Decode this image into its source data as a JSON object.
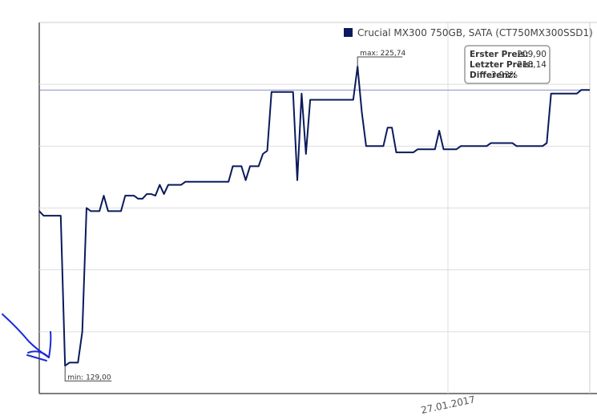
{
  "chart_data": {
    "type": "line",
    "title": "",
    "xlabel": "",
    "ylabel": "",
    "x_tick_labels": [
      "27.01.2017"
    ],
    "legend": {
      "placement": "top-right",
      "entries": [
        "Crucial MX300 750GB, SATA (CT750MX300SSD1)"
      ]
    },
    "grid": true,
    "ylim": [
      120,
      240
    ],
    "reference_line": 218.14,
    "series": [
      {
        "name": "Crucial MX300 750GB, SATA (CT750MX300SSD1)",
        "color": "#0a1a5c",
        "x": [
          0,
          2,
          4,
          6,
          8,
          10,
          12,
          14,
          16,
          18,
          20,
          22,
          24,
          26,
          28,
          30,
          32,
          34,
          36,
          38,
          40,
          42,
          44,
          46,
          48,
          50,
          52,
          54,
          56,
          58,
          60,
          62,
          64,
          66,
          68,
          70,
          72,
          74,
          76,
          78,
          80,
          82,
          84,
          86,
          88,
          90,
          92,
          94,
          96,
          98,
          100,
          102,
          104,
          106,
          108,
          110,
          112,
          114,
          116,
          118,
          120,
          122,
          124,
          126,
          128,
          130,
          132,
          134,
          136,
          138,
          140,
          142,
          144,
          146,
          148,
          150,
          152,
          154,
          156,
          158,
          160,
          162,
          164,
          166,
          168,
          170,
          172,
          174,
          176,
          178,
          180,
          182,
          184,
          186,
          188,
          190,
          192,
          194,
          196,
          198,
          200,
          202,
          204,
          206,
          208,
          210,
          212,
          214,
          216,
          218,
          220,
          222,
          224,
          226,
          228,
          230,
          232,
          234,
          236,
          238,
          240,
          242,
          244,
          246,
          248,
          250,
          252,
          254,
          256
        ],
        "values": [
          179.0,
          177.5,
          177.5,
          177.5,
          177.5,
          177.5,
          129.0,
          130.0,
          130.0,
          130.0,
          140.0,
          180.0,
          179.0,
          179.0,
          179.0,
          184.0,
          179.0,
          179.0,
          179.0,
          179.0,
          184.0,
          184.0,
          184.0,
          183.0,
          183.0,
          184.5,
          184.5,
          184.0,
          187.5,
          184.5,
          187.5,
          187.5,
          187.5,
          187.5,
          188.5,
          188.5,
          188.5,
          188.5,
          188.5,
          188.5,
          188.5,
          188.5,
          188.5,
          188.5,
          188.5,
          193.5,
          193.5,
          193.5,
          189.0,
          193.5,
          193.5,
          193.5,
          197.5,
          198.5,
          217.5,
          217.5,
          217.5,
          217.5,
          217.5,
          217.5,
          189.0,
          217.0,
          197.5,
          215.0,
          215.0,
          215.0,
          215.0,
          215.0,
          215.0,
          215.0,
          215.0,
          215.0,
          215.0,
          215.0,
          225.74,
          211.0,
          200.0,
          200.0,
          200.0,
          200.0,
          200.0,
          206.0,
          206.0,
          198.0,
          198.0,
          198.0,
          198.0,
          198.0,
          199.0,
          199.0,
          199.0,
          199.0,
          199.0,
          205.0,
          199.0,
          199.0,
          199.0,
          199.0,
          200.0,
          200.0,
          200.0,
          200.0,
          200.0,
          200.0,
          200.0,
          201.0,
          201.0,
          201.0,
          201.0,
          201.0,
          201.0,
          200.0,
          200.0,
          200.0,
          200.0,
          200.0,
          200.0,
          200.0,
          201.0,
          217.0,
          217.0,
          217.0,
          217.0,
          217.0,
          217.0,
          217.0,
          218.14,
          218.14,
          218.14
        ]
      }
    ],
    "annotations": [
      {
        "label": "max: 225,74",
        "value": 225.74
      },
      {
        "label": "min: 129,00",
        "value": 129.0
      }
    ],
    "info_box": [
      {
        "label": "Erster Preis:",
        "value": "209,90"
      },
      {
        "label": "Letzter Preis:",
        "value": "218,14"
      },
      {
        "label": "Differenz:",
        "value": "3.93%"
      }
    ]
  }
}
